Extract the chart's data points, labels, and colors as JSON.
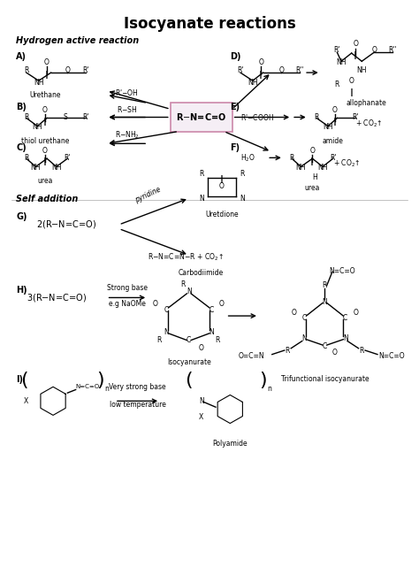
{
  "title": "Isocyanate reactions",
  "title_fontsize": 12,
  "title_fontweight": "bold",
  "background_color": "#ffffff",
  "section1_label": "Hydrogen active reaction",
  "section2_label": "Self addition",
  "fig_width": 4.74,
  "fig_height": 6.5,
  "dpi": 100
}
